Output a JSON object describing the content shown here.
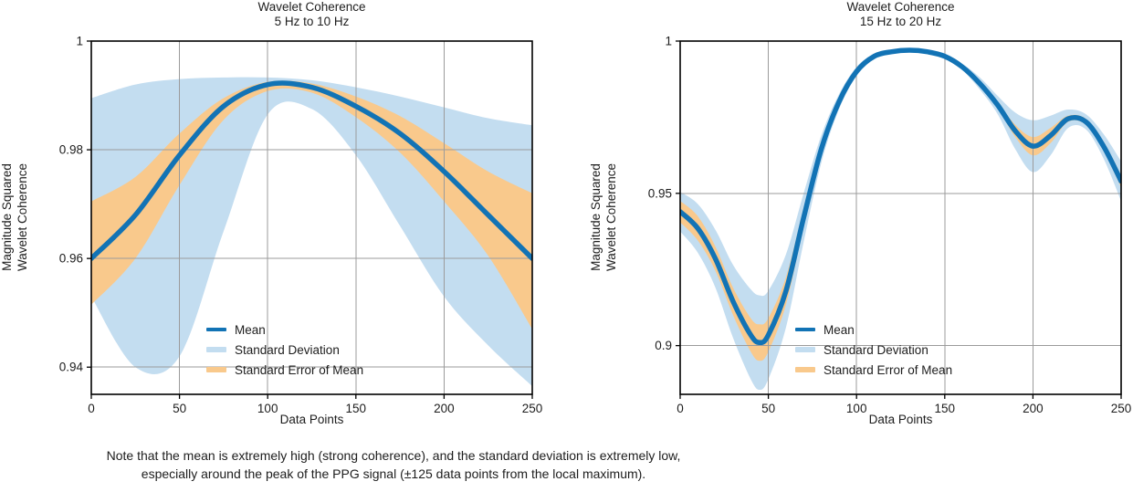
{
  "caption": {
    "line1": "Note that the mean is extremely high (strong coherence), and the standard deviation is extremely low,",
    "line2": "especially around the peak of the PPG signal (±125 data points from the local maximum)."
  },
  "chart_data": [
    {
      "type": "line",
      "title": "Wavelet Coherence",
      "subtitle": "5 Hz to 10 Hz",
      "xlabel": "Data Points",
      "ylabel": "Magnitude Squared Wavelet Coherence",
      "ylabel_lines": [
        "Magnitude Squared",
        "Wavelet Coherence"
      ],
      "legend": [
        "Mean",
        "Standard Deviation",
        "Standard Error of Mean"
      ],
      "legend_position": "inside lower center",
      "grid": true,
      "xlim": [
        0,
        250
      ],
      "ylim": [
        0.935,
        1.0
      ],
      "xticks": [
        0,
        50,
        100,
        150,
        200,
        250
      ],
      "xticklabels": [
        "0",
        "50",
        "100",
        "150",
        "200",
        "250"
      ],
      "yticks": [
        0.94,
        0.96,
        0.98,
        1
      ],
      "yticklabels": [
        "0.94",
        "0.96",
        "0.98",
        "1"
      ],
      "colors": {
        "mean": "#1273b5",
        "sd": "#c3ddf0",
        "sem": "#f9c98c"
      },
      "x": [
        0,
        25,
        50,
        75,
        100,
        125,
        150,
        175,
        200,
        225,
        250
      ],
      "series": [
        {
          "name": "Mean",
          "values": [
            0.96,
            0.968,
            0.979,
            0.988,
            0.992,
            0.9915,
            0.988,
            0.983,
            0.976,
            0.968,
            0.96
          ]
        },
        {
          "name": "Standard Deviation",
          "upper": [
            0.9895,
            0.992,
            0.993,
            0.9933,
            0.9933,
            0.9928,
            0.9915,
            0.9898,
            0.9878,
            0.9858,
            0.9845
          ],
          "lower": [
            0.953,
            0.94,
            0.942,
            0.965,
            0.9865,
            0.9875,
            0.979,
            0.966,
            0.953,
            0.944,
            0.9365
          ]
        },
        {
          "name": "Standard Error of Mean",
          "upper": [
            0.9705,
            0.975,
            0.983,
            0.9895,
            0.9925,
            0.9922,
            0.9898,
            0.9862,
            0.9812,
            0.976,
            0.972
          ],
          "lower": [
            0.9515,
            0.96,
            0.9735,
            0.9855,
            0.9908,
            0.9905,
            0.986,
            0.9795,
            0.9705,
            0.9605,
            0.947
          ]
        }
      ]
    },
    {
      "type": "line",
      "title": "Wavelet Coherence",
      "subtitle": "15 Hz to 20 Hz",
      "xlabel": "Data Points",
      "ylabel": "Magnitude Squared Wavelet Coherence",
      "ylabel_lines": [
        "Magnitude Squared",
        "Wavelet Coherence"
      ],
      "legend": [
        "Mean",
        "Standard Deviation",
        "Standard Error of Mean"
      ],
      "legend_position": "inside lower center",
      "grid": true,
      "xlim": [
        0,
        250
      ],
      "ylim": [
        0.884,
        1.0
      ],
      "xticks": [
        0,
        50,
        100,
        150,
        200,
        250
      ],
      "xticklabels": [
        "0",
        "50",
        "100",
        "150",
        "200",
        "250"
      ],
      "yticks": [
        0.9,
        0.95,
        1
      ],
      "yticklabels": [
        "0.9",
        "0.95",
        "1"
      ],
      "colors": {
        "mean": "#1273b5",
        "sd": "#c3ddf0",
        "sem": "#f9c98c"
      },
      "x": [
        0,
        10,
        20,
        30,
        40,
        45,
        50,
        60,
        70,
        80,
        90,
        100,
        110,
        120,
        130,
        140,
        150,
        160,
        170,
        180,
        190,
        200,
        210,
        220,
        230,
        240,
        250
      ],
      "series": [
        {
          "name": "Mean",
          "values": [
            0.944,
            0.9385,
            0.9285,
            0.9145,
            0.9035,
            0.901,
            0.9035,
            0.918,
            0.942,
            0.9645,
            0.98,
            0.99,
            0.995,
            0.9965,
            0.997,
            0.9965,
            0.995,
            0.9915,
            0.986,
            0.979,
            0.9705,
            0.9655,
            0.969,
            0.9745,
            0.9735,
            0.9655,
            0.954
          ]
        },
        {
          "name": "Standard Deviation",
          "upper": [
            0.9505,
            0.9465,
            0.938,
            0.9265,
            0.9185,
            0.9165,
            0.918,
            0.93,
            0.95,
            0.969,
            0.9825,
            0.9915,
            0.9958,
            0.9972,
            0.9975,
            0.997,
            0.9955,
            0.9925,
            0.988,
            0.982,
            0.9765,
            0.974,
            0.9755,
            0.9775,
            0.976,
            0.9695,
            0.9605
          ],
          "lower": [
            0.9375,
            0.9305,
            0.919,
            0.9025,
            0.889,
            0.8855,
            0.889,
            0.906,
            0.934,
            0.96,
            0.9775,
            0.9885,
            0.9942,
            0.9958,
            0.9965,
            0.996,
            0.9945,
            0.9905,
            0.984,
            0.976,
            0.9645,
            0.957,
            0.9625,
            0.9715,
            0.971,
            0.9615,
            0.9475
          ]
        },
        {
          "name": "Standard Error of Mean",
          "upper": [
            0.9475,
            0.9425,
            0.9325,
            0.919,
            0.909,
            0.907,
            0.909,
            0.9225,
            0.945,
            0.966,
            0.981,
            0.9907,
            0.9953,
            0.9968,
            0.9972,
            0.9967,
            0.9952,
            0.9918,
            0.9867,
            0.98,
            0.9725,
            0.9685,
            0.9715,
            0.9755,
            0.9745,
            0.967,
            0.956
          ],
          "lower": [
            0.9405,
            0.9345,
            0.9245,
            0.91,
            0.898,
            0.895,
            0.898,
            0.9135,
            0.939,
            0.963,
            0.979,
            0.9893,
            0.9947,
            0.9962,
            0.9968,
            0.9963,
            0.9948,
            0.9912,
            0.9853,
            0.978,
            0.9685,
            0.9625,
            0.9665,
            0.9735,
            0.9725,
            0.964,
            0.952
          ]
        }
      ]
    }
  ]
}
